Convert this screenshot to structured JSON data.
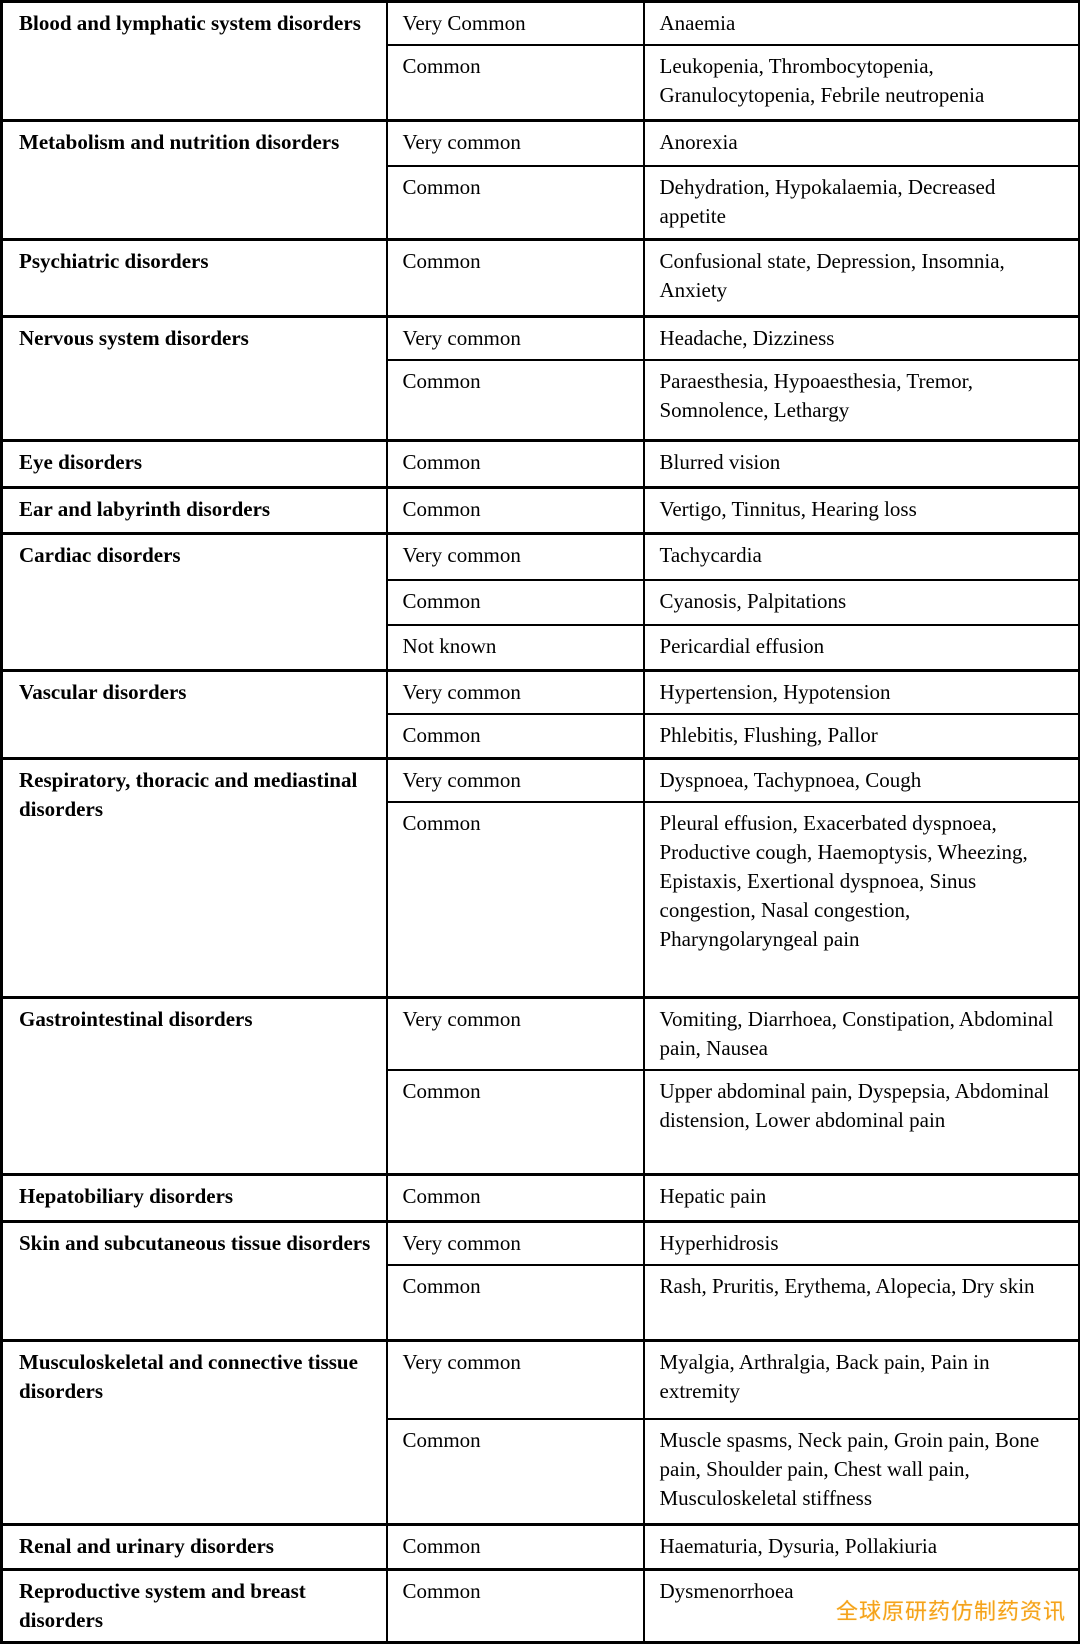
{
  "table": {
    "sections": [
      {
        "disorder": "Blood and lymphatic system disorders",
        "rows": [
          {
            "frequency": "Very Common",
            "reactions": "Anaemia"
          },
          {
            "frequency": "Common",
            "reactions": "Leukopenia, Thrombocytopenia, Granulocytopenia, Febrile neutropenia"
          }
        ]
      },
      {
        "disorder": "Metabolism and nutrition disorders",
        "rows": [
          {
            "frequency": "Very common",
            "reactions": "Anorexia"
          },
          {
            "frequency": "Common",
            "reactions": "Dehydration, Hypokalaemia, Decreased appetite"
          }
        ]
      },
      {
        "disorder": "Psychiatric disorders",
        "rows": [
          {
            "frequency": "Common",
            "reactions": "Confusional state, Depression, Insomnia, Anxiety"
          }
        ]
      },
      {
        "disorder": "Nervous system disorders",
        "rows": [
          {
            "frequency": "Very common",
            "reactions": "Headache, Dizziness"
          },
          {
            "frequency": "Common",
            "reactions": "Paraesthesia, Hypoaesthesia, Tremor, Somnolence, Lethargy"
          }
        ]
      },
      {
        "disorder": "Eye disorders",
        "rows": [
          {
            "frequency": "Common",
            "reactions": "Blurred vision"
          }
        ]
      },
      {
        "disorder": "Ear and labyrinth disorders",
        "rows": [
          {
            "frequency": "Common",
            "reactions": "Vertigo, Tinnitus, Hearing loss"
          }
        ]
      },
      {
        "disorder": "Cardiac disorders",
        "rows": [
          {
            "frequency": "Very common",
            "reactions": "Tachycardia"
          },
          {
            "frequency": "Common",
            "reactions": "Cyanosis, Palpitations"
          },
          {
            "frequency": "Not known",
            "reactions": "Pericardial effusion"
          }
        ]
      },
      {
        "disorder": "Vascular disorders",
        "rows": [
          {
            "frequency": "Very common",
            "reactions": "Hypertension, Hypotension"
          },
          {
            "frequency": "Common",
            "reactions": "Phlebitis, Flushing, Pallor"
          }
        ]
      },
      {
        "disorder": "Respiratory, thoracic and mediastinal disorders",
        "rows": [
          {
            "frequency": "Very common",
            "reactions": "Dyspnoea, Tachypnoea, Cough"
          },
          {
            "frequency": "Common",
            "reactions": "Pleural effusion, Exacerbated dyspnoea, Productive cough, Haemoptysis, Wheezing, Epistaxis, Exertional dyspnoea, Sinus congestion, Nasal congestion, Pharyngolaryngeal pain"
          }
        ]
      },
      {
        "disorder": "Gastrointestinal disorders",
        "rows": [
          {
            "frequency": "Very common",
            "reactions": "Vomiting, Diarrhoea, Constipation, Abdominal pain, Nausea"
          },
          {
            "frequency": "Common",
            "reactions": "Upper abdominal pain, Dyspepsia, Abdominal distension, Lower abdominal pain"
          }
        ]
      },
      {
        "disorder": "Hepatobiliary disorders",
        "rows": [
          {
            "frequency": "Common",
            "reactions": "Hepatic pain"
          }
        ]
      },
      {
        "disorder": "Skin and subcutaneous tissue disorders",
        "rows": [
          {
            "frequency": "Very common",
            "reactions": "Hyperhidrosis"
          },
          {
            "frequency": "Common",
            "reactions": "Rash, Pruritis, Erythema, Alopecia, Dry skin"
          }
        ]
      },
      {
        "disorder": "Musculoskeletal and connective tissue disorders",
        "rows": [
          {
            "frequency": "Very common",
            "reactions": "Myalgia, Arthralgia, Back pain, Pain in extremity"
          },
          {
            "frequency": "Common",
            "reactions": "Muscle spasms, Neck pain, Groin pain, Bone pain, Shoulder pain, Chest wall pain, Musculoskeletal stiffness"
          }
        ]
      },
      {
        "disorder": "Renal and urinary disorders",
        "rows": [
          {
            "frequency": "Common",
            "reactions": "Haematuria, Dysuria, Pollakiuria"
          }
        ]
      },
      {
        "disorder": "Reproductive system and breast disorders",
        "rows": [
          {
            "frequency": "Common",
            "reactions": "Dysmenorrhoea"
          }
        ]
      }
    ]
  },
  "watermark": {
    "text": "全球原研药仿制药资讯",
    "color": "#F5A21B"
  }
}
